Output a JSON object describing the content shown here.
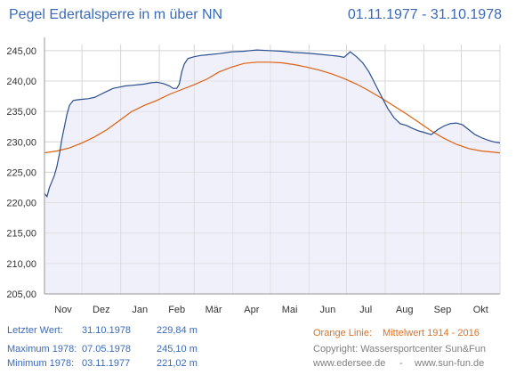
{
  "header": {
    "title": "Pegel Edertalsperre in m über NN",
    "date_range": "01.11.1977 - 31.10.1978"
  },
  "footer": {
    "last_label": "Letzter Wert:",
    "last_date": "31.10.1978",
    "last_value": "229,84 m",
    "max_label": "Maximum 1978:",
    "max_date": "07.05.1978",
    "max_value": "245,10 m",
    "min_label": "Minimum  1978:",
    "min_date": "03.11.1977",
    "min_value": "221,02 m",
    "orange_label": "Orange Linie:",
    "orange_text": "Mittelwert   1914 - 2016",
    "copyright": "Copyright: Wassersportcenter Sun&Fun",
    "website1": "www.edersee.de",
    "separator": "-",
    "website2": "www.sun-fun.de"
  },
  "chart_data": {
    "type": "line",
    "x_categories": [
      "Nov",
      "Dez",
      "Jan",
      "Feb",
      "Mär",
      "Apr",
      "Mai",
      "Jun",
      "Jul",
      "Aug",
      "Sep",
      "Okt"
    ],
    "yticks": [
      "205,00",
      "210,00",
      "215,00",
      "220,00",
      "225,00",
      "230,00",
      "235,00",
      "240,00",
      "245,00"
    ],
    "ylim": [
      205,
      246
    ],
    "xlim_days": [
      0,
      365
    ],
    "grid": true,
    "series": [
      {
        "color": "#2a4f8f",
        "fill": "#f0f0fa",
        "points": [
          [
            0,
            221.5
          ],
          [
            2,
            221.0
          ],
          [
            4,
            222.5
          ],
          [
            6,
            223.5
          ],
          [
            8,
            224.5
          ],
          [
            10,
            226
          ],
          [
            12,
            228
          ],
          [
            14,
            230.5
          ],
          [
            16,
            232.5
          ],
          [
            18,
            234.5
          ],
          [
            20,
            236
          ],
          [
            23,
            236.8
          ],
          [
            26,
            236.9
          ],
          [
            30,
            237
          ],
          [
            35,
            237.1
          ],
          [
            40,
            237.3
          ],
          [
            45,
            237.8
          ],
          [
            50,
            238.3
          ],
          [
            55,
            238.8
          ],
          [
            60,
            239
          ],
          [
            65,
            239.2
          ],
          [
            70,
            239.3
          ],
          [
            75,
            239.4
          ],
          [
            80,
            239.5
          ],
          [
            85,
            239.7
          ],
          [
            90,
            239.8
          ],
          [
            95,
            239.6
          ],
          [
            100,
            239.2
          ],
          [
            103,
            238.8
          ],
          [
            106,
            238.8
          ],
          [
            108,
            239.5
          ],
          [
            110,
            241.5
          ],
          [
            112,
            242.8
          ],
          [
            115,
            243.7
          ],
          [
            120,
            244
          ],
          [
            125,
            244.2
          ],
          [
            130,
            244.3
          ],
          [
            140,
            244.5
          ],
          [
            150,
            244.8
          ],
          [
            160,
            244.9
          ],
          [
            165,
            245
          ],
          [
            170,
            245.1
          ],
          [
            180,
            245
          ],
          [
            190,
            244.9
          ],
          [
            200,
            244.7
          ],
          [
            210,
            244.6
          ],
          [
            220,
            244.4
          ],
          [
            230,
            244.2
          ],
          [
            235,
            244.1
          ],
          [
            240,
            243.9
          ],
          [
            245,
            244.8
          ],
          [
            250,
            244
          ],
          [
            255,
            243
          ],
          [
            260,
            241.5
          ],
          [
            265,
            239.5
          ],
          [
            270,
            237.5
          ],
          [
            275,
            235.5
          ],
          [
            280,
            234
          ],
          [
            285,
            233
          ],
          [
            290,
            232.7
          ],
          [
            295,
            232.2
          ],
          [
            300,
            231.8
          ],
          [
            305,
            231.5
          ],
          [
            310,
            231.2
          ],
          [
            315,
            232
          ],
          [
            320,
            232.6
          ],
          [
            325,
            233
          ],
          [
            330,
            233.1
          ],
          [
            335,
            232.8
          ],
          [
            340,
            232
          ],
          [
            345,
            231.2
          ],
          [
            350,
            230.7
          ],
          [
            355,
            230.3
          ],
          [
            360,
            230
          ],
          [
            365,
            229.84
          ]
        ]
      },
      {
        "color": "#e06010",
        "points": [
          [
            0,
            228.2
          ],
          [
            10,
            228.5
          ],
          [
            20,
            229
          ],
          [
            30,
            229.8
          ],
          [
            40,
            230.8
          ],
          [
            50,
            232
          ],
          [
            60,
            233.5
          ],
          [
            70,
            235
          ],
          [
            80,
            236
          ],
          [
            90,
            236.8
          ],
          [
            100,
            237.8
          ],
          [
            110,
            238.6
          ],
          [
            120,
            239.4
          ],
          [
            130,
            240.3
          ],
          [
            140,
            241.5
          ],
          [
            150,
            242.3
          ],
          [
            160,
            242.9
          ],
          [
            170,
            243.1
          ],
          [
            180,
            243.1
          ],
          [
            190,
            243
          ],
          [
            200,
            242.7
          ],
          [
            210,
            242.3
          ],
          [
            220,
            241.8
          ],
          [
            230,
            241.2
          ],
          [
            240,
            240.4
          ],
          [
            250,
            239.5
          ],
          [
            260,
            238.4
          ],
          [
            270,
            237.2
          ],
          [
            280,
            235.9
          ],
          [
            290,
            234.6
          ],
          [
            300,
            233.2
          ],
          [
            310,
            231.8
          ],
          [
            320,
            230.6
          ],
          [
            330,
            229.6
          ],
          [
            340,
            228.9
          ],
          [
            350,
            228.5
          ],
          [
            360,
            228.3
          ],
          [
            365,
            228.2
          ]
        ]
      }
    ]
  }
}
